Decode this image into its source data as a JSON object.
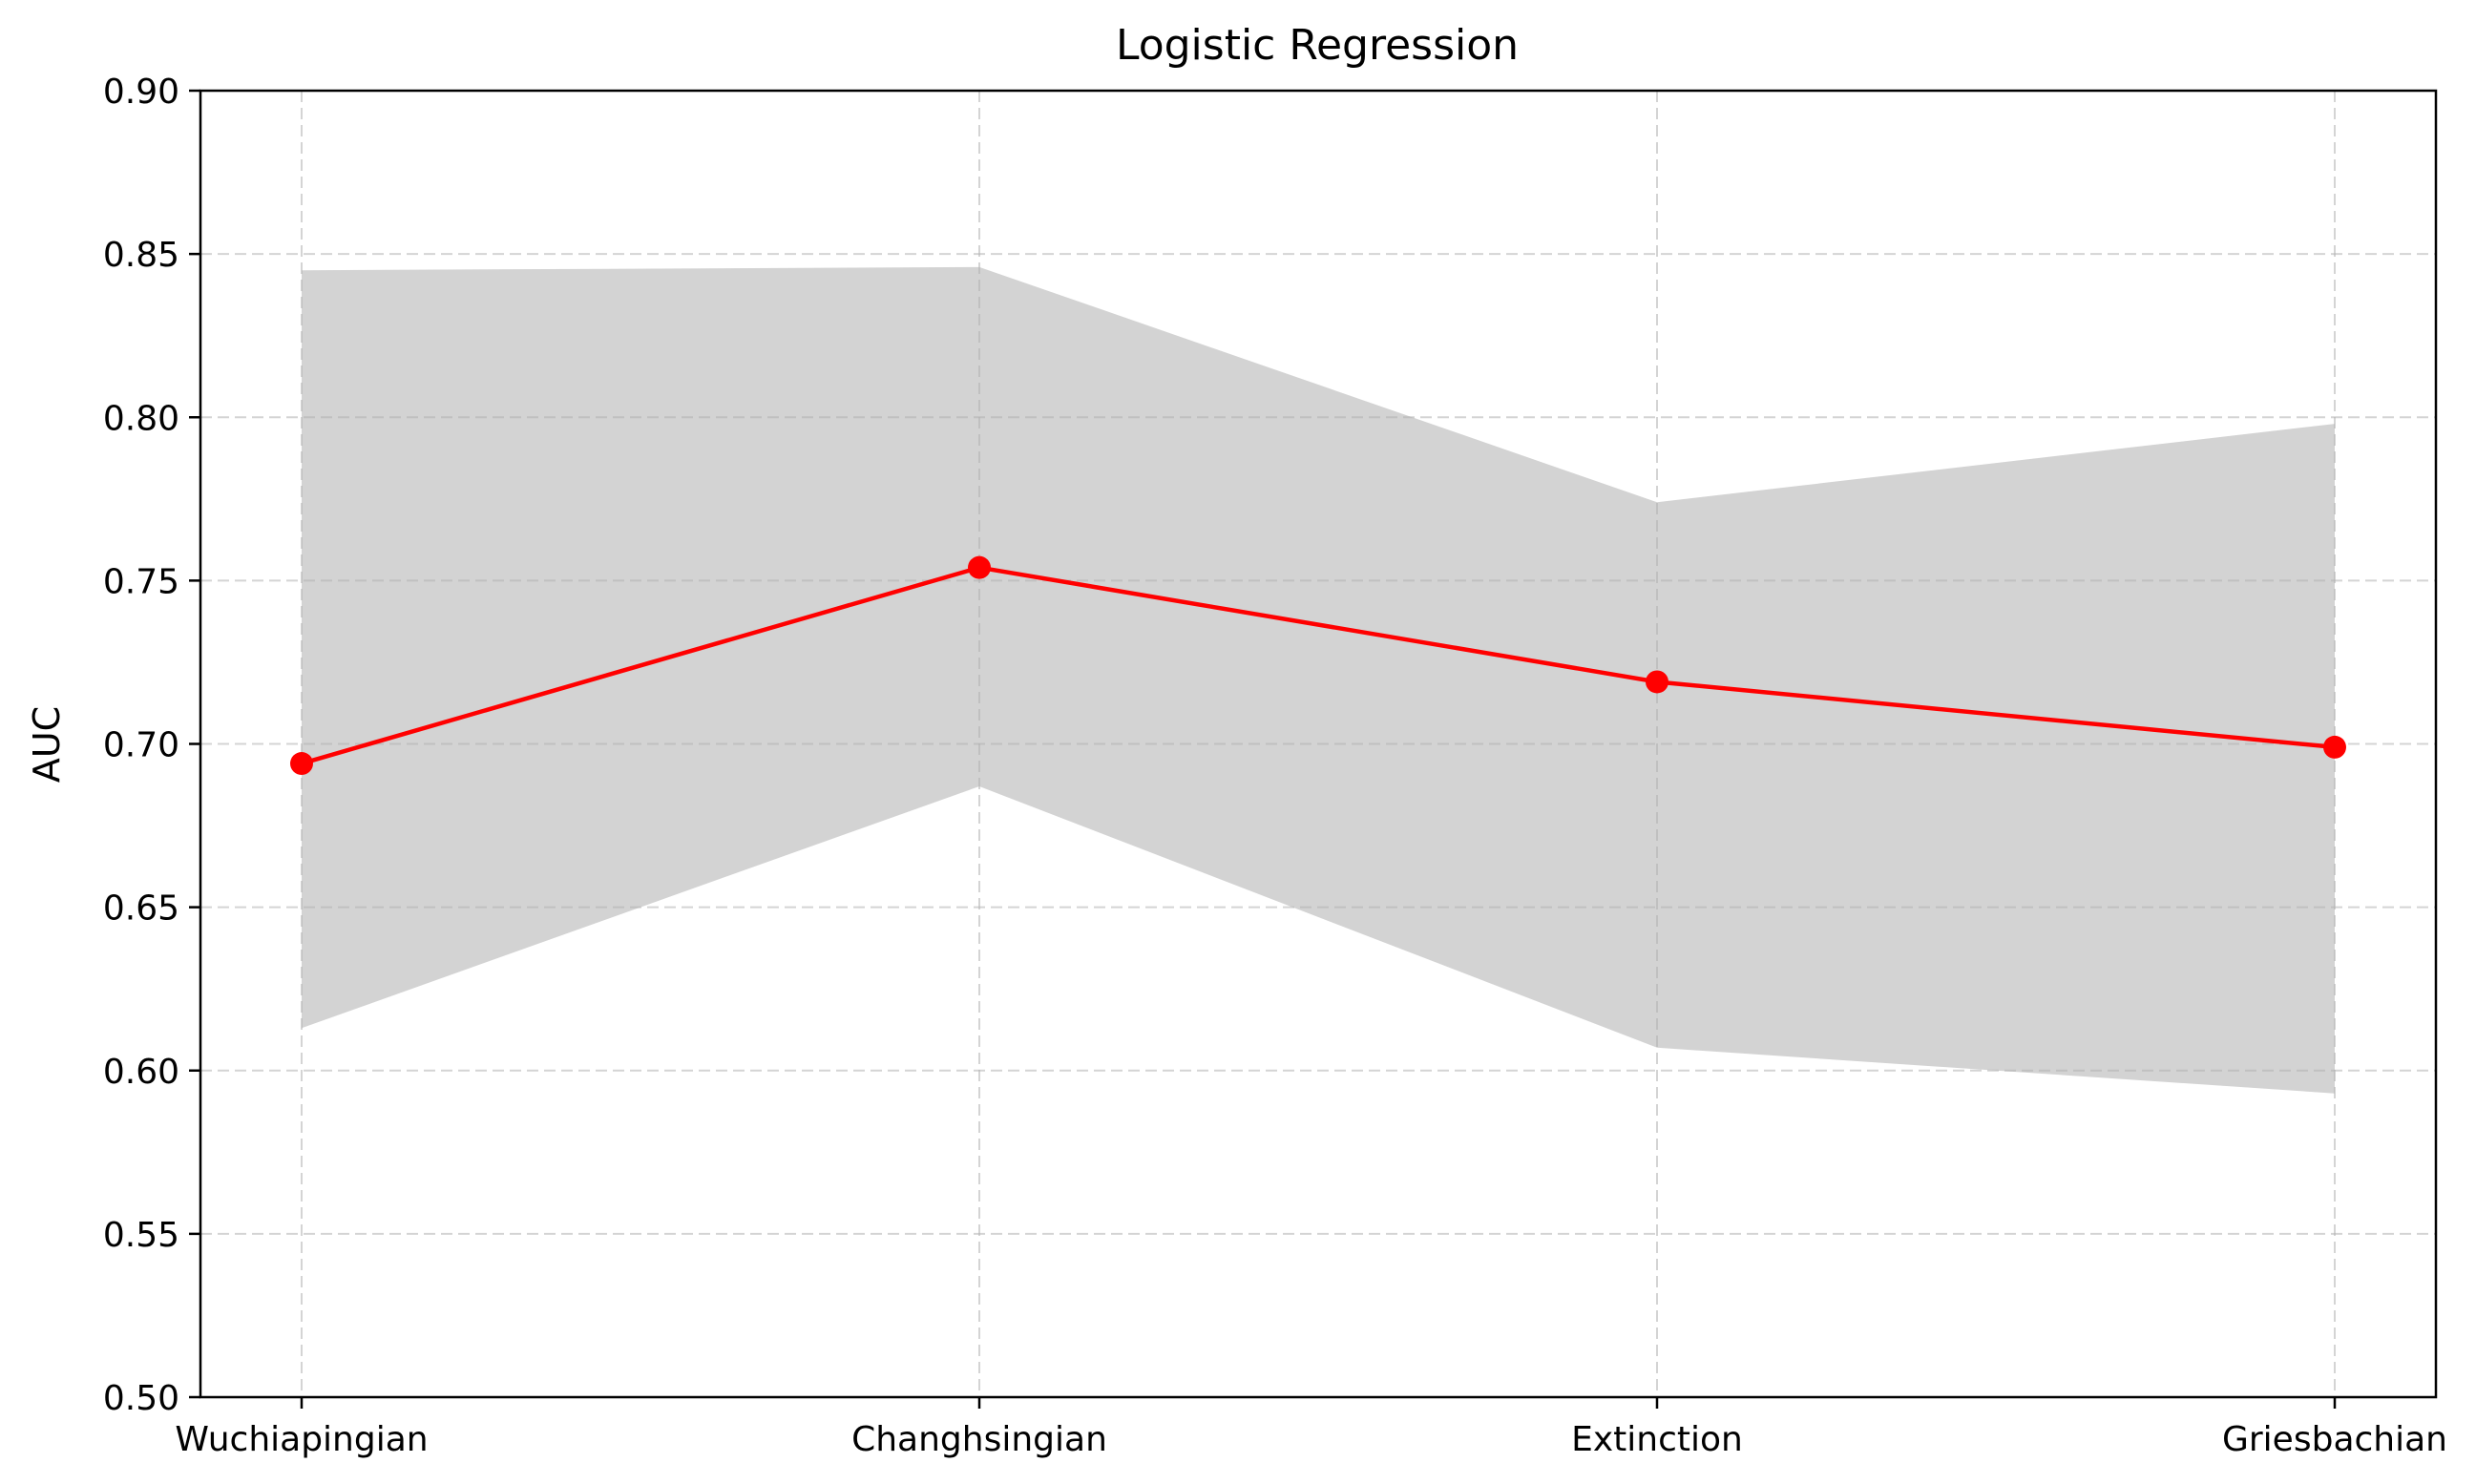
{
  "chart_data": {
    "type": "line",
    "title": "Logistic Regression",
    "xlabel": "",
    "ylabel": "AUC",
    "categories": [
      "Wuchiapingian",
      "Changhsingian",
      "Extinction",
      "Griesbachian"
    ],
    "series": [
      {
        "values": [
          0.694,
          0.754,
          0.719,
          0.699
        ],
        "color": "#ff0000",
        "marker": "circle"
      }
    ],
    "band": {
      "lower": [
        0.613,
        0.687,
        0.607,
        0.593
      ],
      "upper": [
        0.845,
        0.846,
        0.774,
        0.798
      ],
      "color": "#d3d3d3"
    },
    "ylim": [
      0.5,
      0.9
    ],
    "yticks": [
      "0.50",
      "0.55",
      "0.60",
      "0.65",
      "0.70",
      "0.75",
      "0.80",
      "0.85",
      "0.90"
    ],
    "grid": true,
    "grid_style": "dashed"
  }
}
